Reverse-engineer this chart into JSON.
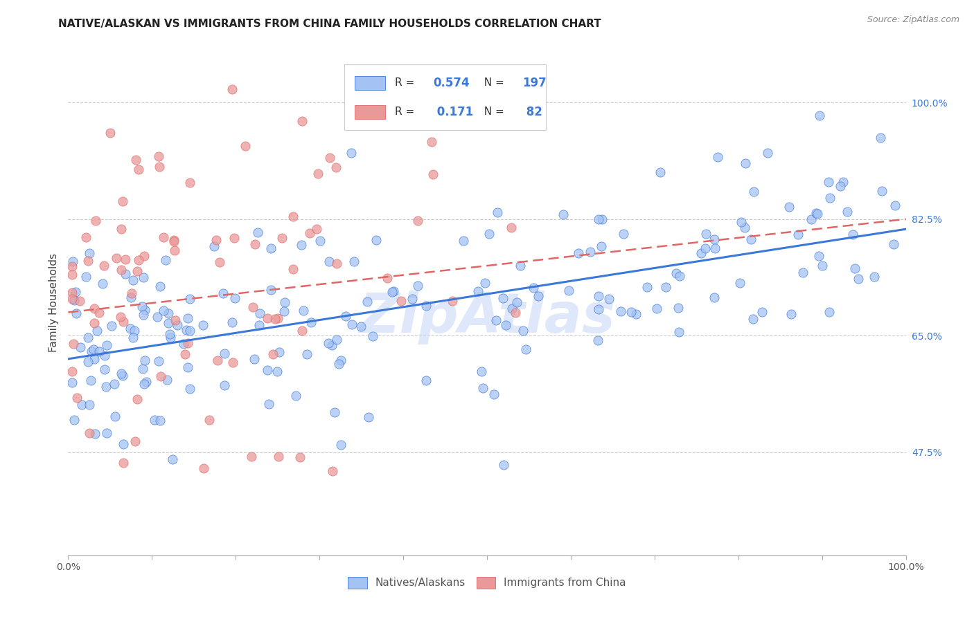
{
  "title": "NATIVE/ALASKAN VS IMMIGRANTS FROM CHINA FAMILY HOUSEHOLDS CORRELATION CHART",
  "source": "Source: ZipAtlas.com",
  "ylabel": "Family Households",
  "ytick_labels": [
    "100.0%",
    "82.5%",
    "65.0%",
    "47.5%"
  ],
  "ytick_values": [
    1.0,
    0.825,
    0.65,
    0.475
  ],
  "xlim": [
    0.0,
    1.0
  ],
  "ylim": [
    0.32,
    1.08
  ],
  "legend_label1": "Natives/Alaskans",
  "legend_label2": "Immigrants from China",
  "r1": 0.574,
  "n1": 197,
  "r2": 0.171,
  "n2": 82,
  "color_blue": "#a4c2f4",
  "color_pink": "#ea9999",
  "color_blue_text": "#3c78d8",
  "line_blue": "#3c78d8",
  "line_pink": "#e06666",
  "watermark_color": "#c9daf8",
  "title_fontsize": 11,
  "source_fontsize": 9,
  "seed": 42,
  "blue_slope": 0.195,
  "blue_intercept": 0.615,
  "pink_slope": 0.14,
  "pink_intercept": 0.685
}
